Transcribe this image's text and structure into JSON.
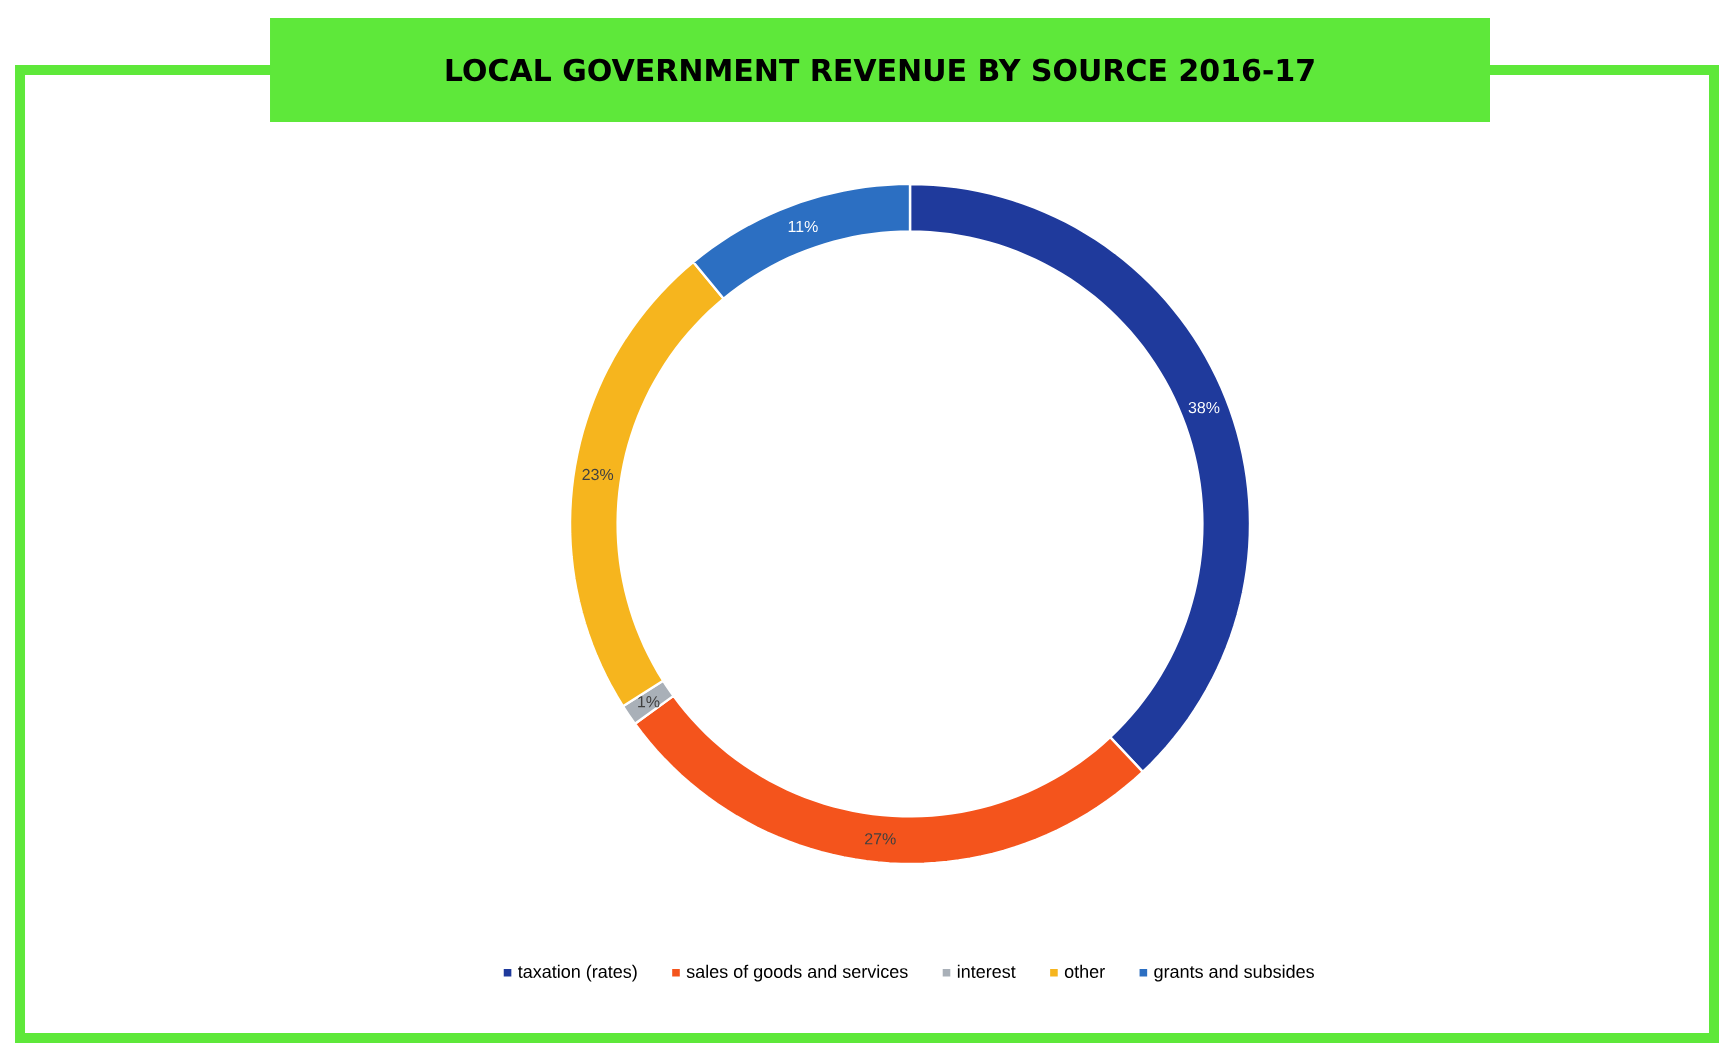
{
  "chart_data": {
    "type": "donut",
    "title": "LOCAL GOVERNMENT REVENUE BY SOURCE 2016-17",
    "categories": [
      "taxation (rates)",
      "sales of goods and services",
      "interest",
      "other",
      "grants and subsides"
    ],
    "values": [
      38,
      27,
      1,
      23,
      11
    ],
    "value_labels": [
      "38%",
      "27%",
      "1%",
      "23%",
      "11%"
    ],
    "colors": [
      "#1f3a9c",
      "#f4541c",
      "#a9b0b8",
      "#f6b51e",
      "#2c6fc2"
    ],
    "legend": "bottom"
  }
}
